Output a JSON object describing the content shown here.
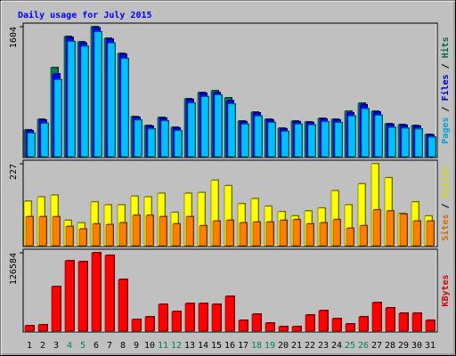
{
  "chart_data": {
    "type": "bar",
    "title": "Daily usage for July 2015",
    "categories": [
      "1",
      "2",
      "3",
      "4",
      "5",
      "6",
      "7",
      "8",
      "9",
      "10",
      "11",
      "12",
      "13",
      "14",
      "15",
      "16",
      "17",
      "18",
      "19",
      "20",
      "21",
      "22",
      "23",
      "24",
      "25",
      "26",
      "27",
      "28",
      "29",
      "30",
      "31"
    ],
    "category_colors": [
      "#000000",
      "#000000",
      "#000000",
      "#00805c",
      "#00805c",
      "#000000",
      "#000000",
      "#000000",
      "#000000",
      "#000000",
      "#00805c",
      "#00805c",
      "#000000",
      "#000000",
      "#000000",
      "#000000",
      "#000000",
      "#00805c",
      "#00805c",
      "#000000",
      "#000000",
      "#000000",
      "#000000",
      "#000000",
      "#00805c",
      "#00805c",
      "#000000",
      "#000000",
      "#000000",
      "#000000",
      "#000000"
    ],
    "legend_separator": " / ",
    "panels": [
      {
        "ylim": [
          0,
          1604
        ],
        "yticks": [
          1604
        ],
        "series": [
          {
            "name": "Hits",
            "color": "#00805c",
            "values": [
              330,
              461,
              1099,
              1483,
              1417,
              1604,
              1461,
              1274,
              494,
              384,
              483,
              362,
              714,
              791,
              813,
              725,
              439,
              549,
              461,
              351,
              439,
              428,
              472,
              461,
              560,
              659,
              560,
              406,
              395,
              384,
              274
            ]
          },
          {
            "name": "Files",
            "color": "#0000ff",
            "values": [
              320,
              450,
              1020,
              1470,
              1400,
              1590,
              1450,
              1262,
              484,
              374,
              474,
              352,
              705,
              782,
              790,
              690,
              430,
              539,
              452,
              342,
              430,
              420,
              463,
              452,
              540,
              640,
              550,
              397,
              386,
              375,
              266
            ]
          },
          {
            "name": "Pages",
            "color": "#00c0ff",
            "values": [
              290,
              410,
              950,
              1420,
              1360,
              1540,
              1400,
              1210,
              450,
              340,
              440,
              320,
              660,
              740,
              760,
              650,
              400,
              500,
              420,
              310,
              400,
              390,
              430,
              420,
              500,
              590,
              510,
              360,
              350,
              340,
              240
            ]
          }
        ]
      },
      {
        "ylim": [
          0,
          227
        ],
        "yticks": [
          227
        ],
        "series": [
          {
            "name": "Visits",
            "color": "#ffff00",
            "values": [
              123,
              135,
              140,
              70,
              63,
              121,
              113,
              113,
              137,
              135,
              145,
              92,
              145,
              147,
              181,
              166,
              116,
              130,
              109,
              94,
              82,
              96,
              104,
              152,
              113,
              171,
              227,
              188,
              89,
              121,
              82
            ]
          },
          {
            "name": "Sites",
            "color": "#ff8000",
            "values": [
              80,
              80,
              80,
              53,
              46,
              60,
              58,
              63,
              84,
              84,
              80,
              60,
              80,
              55,
              68,
              70,
              63,
              65,
              65,
              70,
              72,
              60,
              63,
              72,
              48,
              55,
              99,
              96,
              87,
              68,
              68
            ]
          }
        ]
      },
      {
        "ylim": [
          0,
          126584
        ],
        "yticks": [
          126584
        ],
        "series": [
          {
            "name": "KBytes",
            "color": "#ff0000",
            "values": [
              8630,
              10070,
              71900,
              113600,
              112200,
              126584,
              122300,
              83400,
              18700,
              23000,
              43200,
              31600,
              44600,
              44600,
              43200,
              56100,
              17300,
              27300,
              12900,
              7200,
              7200,
              25900,
              33100,
              20100,
              11500,
              23000,
              46000,
              37400,
              28800,
              28800,
              17300
            ]
          }
        ]
      }
    ]
  }
}
